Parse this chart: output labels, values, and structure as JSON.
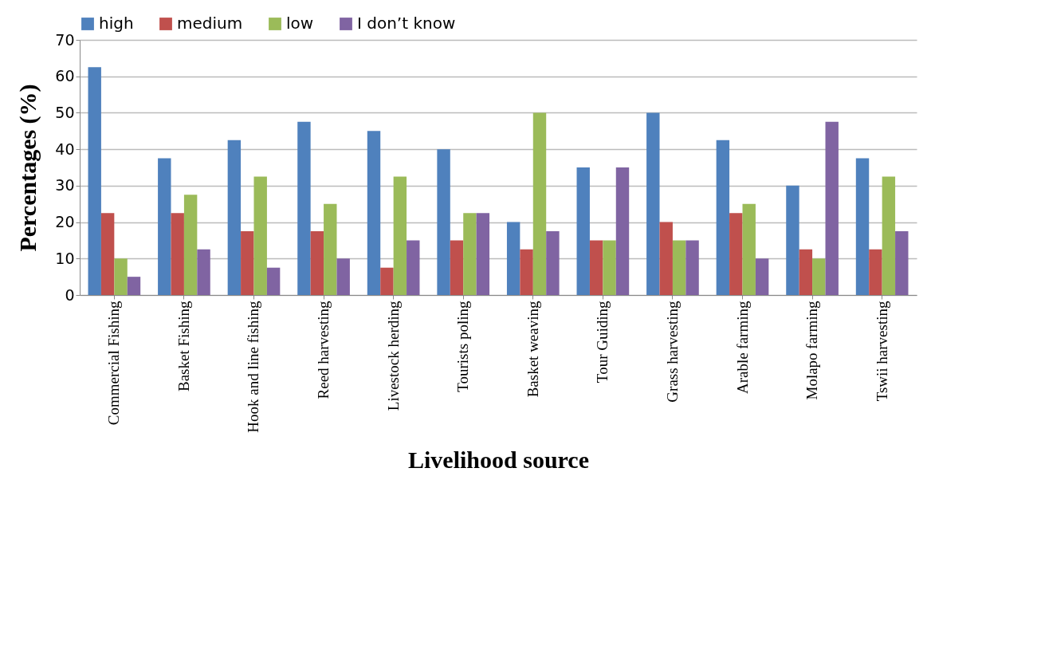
{
  "chart_data": {
    "type": "bar",
    "xlabel": "Livelihood source",
    "ylabel": "Percentages (%)",
    "categories": [
      "Commercial Fishing",
      "Basket Fishing",
      "Hook and line fishing",
      "Reed harvesting",
      "Livestock herding",
      "Tourists poling",
      "Basket weaving",
      "Tour Guiding",
      "Grass harvesting",
      "Arable farming",
      "Molapo farming",
      "Tswii harvesting"
    ],
    "series": [
      {
        "name": "high",
        "color": "#4f81bd",
        "values": [
          62.5,
          37.5,
          42.5,
          47.5,
          45,
          40,
          20,
          35,
          50,
          42.5,
          30,
          37.5
        ]
      },
      {
        "name": "medium",
        "color": "#c0504d",
        "values": [
          22.5,
          22.5,
          17.5,
          17.5,
          7.5,
          15,
          12.5,
          15,
          20,
          22.5,
          12.5,
          12.5
        ]
      },
      {
        "name": "low",
        "color": "#9bbb59",
        "values": [
          10,
          27.5,
          32.5,
          25,
          32.5,
          22.5,
          50,
          15,
          15,
          25,
          10,
          32.5
        ]
      },
      {
        "name": "I don’t know",
        "color": "#8064a2",
        "values": [
          5,
          12.5,
          7.5,
          10,
          15,
          22.5,
          17.5,
          35,
          15,
          10,
          47.5,
          17.5
        ]
      }
    ],
    "ylim": [
      0,
      70
    ],
    "yticks": [
      0,
      10,
      20,
      30,
      40,
      50,
      60,
      70
    ],
    "grid": "y",
    "legend": "top"
  }
}
